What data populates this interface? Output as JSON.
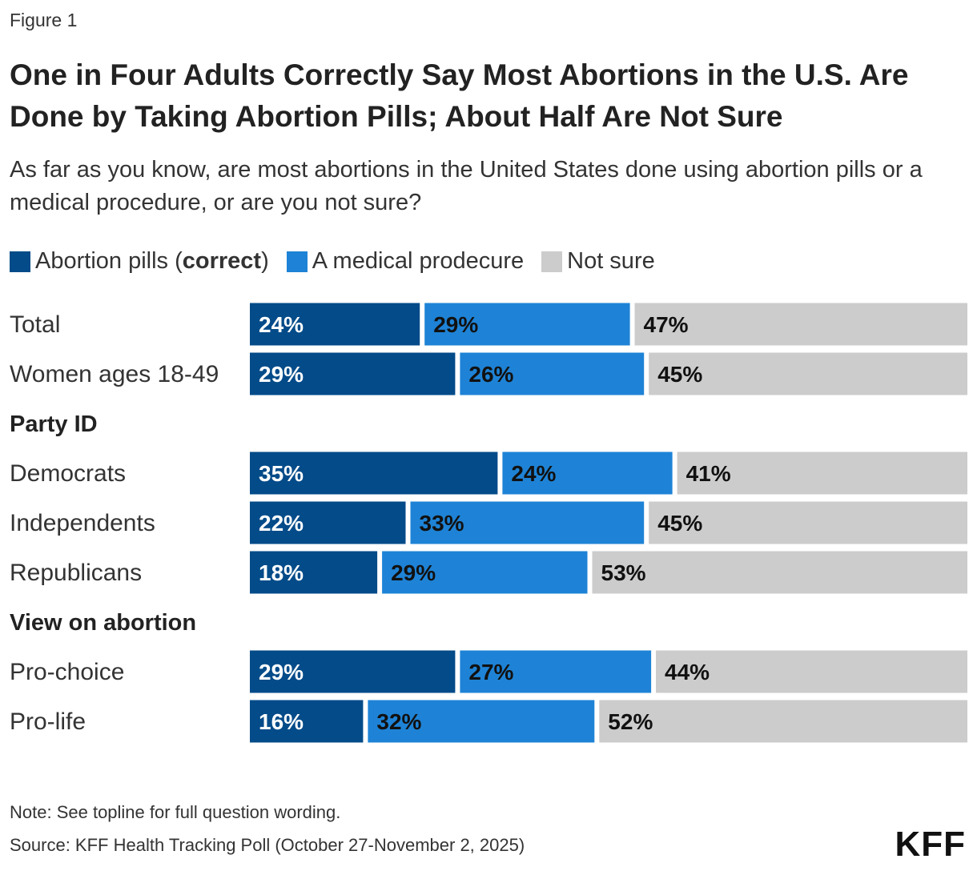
{
  "figure_label": "Figure 1",
  "title": "One in Four Adults Correctly Say Most Abortions in the U.S. Are Done by Taking Abortion Pills; About Half Are Not Sure",
  "subtitle": "As far as you know, are most abortions in the United States done using abortion pills or a medical procedure, or are you not sure?",
  "legend": [
    {
      "name": "Abortion pills (correct)",
      "plain": "Abortion pills (",
      "bold": "correct",
      "tail": ")",
      "color": "#034b89"
    },
    {
      "name": "A medical prodecure",
      "plain": "A medical prodecure",
      "color": "#1e83d6"
    },
    {
      "name": "Not sure",
      "plain": "Not sure",
      "color": "#cccccc"
    }
  ],
  "note": "Note: See topline for full question wording.",
  "source": "Source: KFF Health Tracking Poll (October 27-November 2, 2025)",
  "logo": "KFF",
  "chart_data": {
    "type": "bar",
    "orientation": "horizontal",
    "stacked": true,
    "title": "One in Four Adults Correctly Say Most Abortions in the U.S. Are Done by Taking Abortion Pills; About Half Are Not Sure",
    "subtitle": "As far as you know, are most abortions in the United States done using abortion pills or a medical procedure, or are you not sure?",
    "legend_position": "top-left",
    "grid": false,
    "xlim": [
      0,
      100
    ],
    "series": [
      {
        "name": "Abortion pills (correct)",
        "color": "#034b89",
        "text_color": "#ffffff"
      },
      {
        "name": "A medical prodecure",
        "color": "#1e83d6",
        "text_color": "#111111"
      },
      {
        "name": "Not sure",
        "color": "#cccccc",
        "text_color": "#111111"
      }
    ],
    "rows": [
      {
        "label": "Total",
        "kind": "bar",
        "values": [
          24,
          29,
          47
        ],
        "labels": [
          "24%",
          "29%",
          "47%"
        ]
      },
      {
        "label": "Women ages 18-49",
        "kind": "bar",
        "values": [
          29,
          26,
          45
        ],
        "labels": [
          "29%",
          "26%",
          "45%"
        ]
      },
      {
        "label": "Party ID",
        "kind": "header"
      },
      {
        "label": "Democrats",
        "kind": "bar",
        "values": [
          35,
          24,
          41
        ],
        "labels": [
          "35%",
          "24%",
          "41%"
        ]
      },
      {
        "label": "Independents",
        "kind": "bar",
        "values": [
          22,
          33,
          45
        ],
        "labels": [
          "22%",
          "33%",
          "45%"
        ]
      },
      {
        "label": "Republicans",
        "kind": "bar",
        "values": [
          18,
          29,
          53
        ],
        "labels": [
          "18%",
          "29%",
          "53%"
        ]
      },
      {
        "label": "View on abortion",
        "kind": "header"
      },
      {
        "label": "Pro-choice",
        "kind": "bar",
        "values": [
          29,
          27,
          44
        ],
        "labels": [
          "29%",
          "27%",
          "44%"
        ]
      },
      {
        "label": "Pro-life",
        "kind": "bar",
        "values": [
          16,
          32,
          52
        ],
        "labels": [
          "16%",
          "32%",
          "52%"
        ]
      }
    ]
  }
}
